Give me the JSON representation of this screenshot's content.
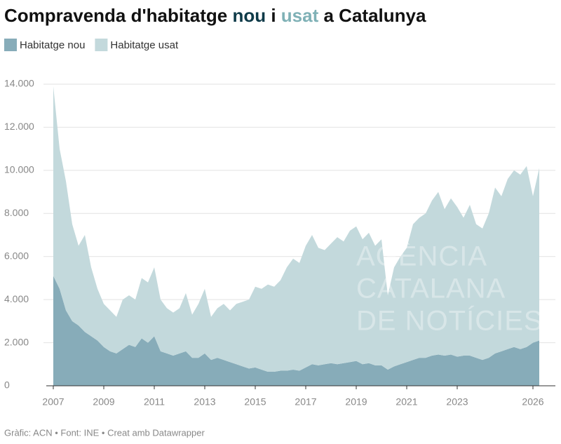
{
  "chart_data": {
    "type": "stacked-area",
    "title": [
      "Compravenda d'habitatge ",
      "nou",
      " i ",
      "usat",
      " a Catalunya"
    ],
    "footer": "Gràfic: ACN • Font: INE • Creat amb Datawrapper",
    "watermark": [
      "AGÈNCIA",
      "CATALANA",
      "DE NOTÍCIES"
    ],
    "x": [
      2007,
      2007.25,
      2007.5,
      2007.75,
      2008,
      2008.25,
      2008.5,
      2008.75,
      2009,
      2009.25,
      2009.5,
      2009.75,
      2010,
      2010.25,
      2010.5,
      2010.75,
      2011,
      2011.25,
      2011.5,
      2011.75,
      2012,
      2012.25,
      2012.5,
      2012.75,
      2013,
      2013.25,
      2013.5,
      2013.75,
      2014,
      2014.25,
      2014.5,
      2014.75,
      2015,
      2015.25,
      2015.5,
      2015.75,
      2016,
      2016.25,
      2016.5,
      2016.75,
      2017,
      2017.25,
      2017.5,
      2017.75,
      2018,
      2018.25,
      2018.5,
      2018.75,
      2019,
      2019.25,
      2019.5,
      2019.75,
      2020,
      2020.25,
      2020.5,
      2020.75,
      2021,
      2021.25,
      2021.5,
      2021.75,
      2022,
      2022.25,
      2022.5,
      2022.75,
      2023,
      2023.25,
      2023.5,
      2023.75,
      2024,
      2024.25,
      2024.5,
      2024.75,
      2025,
      2025.25,
      2025.5,
      2025.75,
      2026,
      2026.25
    ],
    "series": [
      {
        "name": "Habitatge nou",
        "color": "#87acb9",
        "values": [
          5100,
          4500,
          3500,
          3000,
          2800,
          2500,
          2300,
          2100,
          1800,
          1600,
          1500,
          1700,
          1900,
          1800,
          2200,
          2000,
          2300,
          1600,
          1500,
          1400,
          1500,
          1600,
          1300,
          1300,
          1500,
          1200,
          1300,
          1200,
          1100,
          1000,
          900,
          800,
          850,
          750,
          650,
          650,
          700,
          700,
          750,
          700,
          850,
          1000,
          950,
          1000,
          1050,
          1000,
          1050,
          1100,
          1150,
          1000,
          1050,
          950,
          950,
          750,
          900,
          1000,
          1100,
          1200,
          1300,
          1300,
          1400,
          1450,
          1400,
          1450,
          1350,
          1400,
          1400,
          1300,
          1200,
          1300,
          1500,
          1600,
          1700,
          1800,
          1700,
          1800,
          2000,
          2100
        ]
      },
      {
        "name": "Habitatge usat",
        "color": "#c3d9dc",
        "values": [
          8800,
          6500,
          6000,
          4500,
          3700,
          4500,
          3200,
          2400,
          2000,
          1900,
          1700,
          2300,
          2300,
          2200,
          2800,
          2800,
          3200,
          2400,
          2100,
          2000,
          2100,
          2700,
          2000,
          2500,
          3000,
          2000,
          2300,
          2600,
          2400,
          2800,
          3000,
          3200,
          3750,
          3750,
          4050,
          3950,
          4200,
          4800,
          5150,
          5000,
          5650,
          6000,
          5450,
          5300,
          5550,
          5900,
          5650,
          6100,
          6250,
          5800,
          6050,
          5550,
          5850,
          3450,
          4600,
          5000,
          5300,
          6300,
          6500,
          6700,
          7200,
          7550,
          6800,
          7250,
          6950,
          6400,
          7000,
          6200,
          6100,
          6700,
          7700,
          7200,
          7900,
          8200,
          8100,
          8400,
          6800,
          8000
        ]
      }
    ],
    "xlim": [
      2007,
      2026.33
    ],
    "xticks": [
      2007,
      2009,
      2011,
      2013,
      2015,
      2017,
      2019,
      2021,
      2023,
      2026
    ],
    "ylim": [
      0,
      14000
    ],
    "yticks": [
      0,
      {
        "value": 2000,
        "label": "2.000"
      },
      {
        "value": 4000,
        "label": "4.000"
      },
      {
        "value": 6000,
        "label": "6.000"
      },
      {
        "value": 8000,
        "label": "8.000"
      },
      {
        "value": 10000,
        "label": "10.000"
      },
      {
        "value": 12000,
        "label": "12.000"
      },
      {
        "value": 14000,
        "label": "14.000"
      }
    ],
    "grid": true
  }
}
